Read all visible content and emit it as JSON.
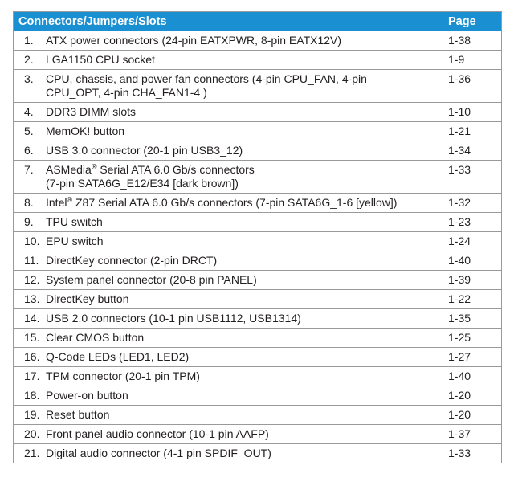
{
  "table": {
    "header": {
      "title": "Connectors/Jumpers/Slots",
      "page": "Page"
    },
    "rows": [
      {
        "num": "1.",
        "lines": [
          "ATX power connectors (24-pin EATXPWR, 8-pin EATX12V)"
        ],
        "page": "1-38"
      },
      {
        "num": "2.",
        "lines": [
          "LGA1150 CPU socket"
        ],
        "page": "1-9"
      },
      {
        "num": "3.",
        "lines": [
          "CPU, chassis, and power fan connectors (4-pin CPU_FAN, 4-pin",
          "CPU_OPT, 4-pin CHA_FAN1-4 )"
        ],
        "page": "1-36"
      },
      {
        "num": "4.",
        "lines": [
          "DDR3 DIMM slots"
        ],
        "page": "1-10"
      },
      {
        "num": "5.",
        "lines": [
          "MemOK! button"
        ],
        "page": "1-21"
      },
      {
        "num": "6.",
        "lines": [
          "USB 3.0 connector (20-1 pin USB3_12)"
        ],
        "page": "1-34"
      },
      {
        "num": "7.",
        "lead": "ASMedia",
        "sup": "®",
        "lines": [
          " Serial ATA 6.0 Gb/s connectors",
          "(7-pin SATA6G_E12/E34 [dark brown])"
        ],
        "page": "1-33"
      },
      {
        "num": "8.",
        "lead": "Intel",
        "sup": "®",
        "lines": [
          " Z87 Serial ATA 6.0 Gb/s connectors (7-pin SATA6G_1-6 [yellow])"
        ],
        "page": "1-32"
      },
      {
        "num": "9.",
        "lines": [
          "TPU switch"
        ],
        "page": "1-23"
      },
      {
        "num": "10.",
        "lines": [
          "EPU switch"
        ],
        "page": "1-24"
      },
      {
        "num": "11.",
        "lines": [
          "DirectKey connector (2-pin DRCT)"
        ],
        "page": "1-40"
      },
      {
        "num": "12.",
        "lines": [
          "System panel connector (20-8 pin PANEL)"
        ],
        "page": "1-39"
      },
      {
        "num": "13.",
        "lines": [
          "DirectKey button"
        ],
        "page": "1-22"
      },
      {
        "num": "14.",
        "lines": [
          "USB 2.0 connectors (10-1 pin USB1112, USB1314)"
        ],
        "page": "1-35"
      },
      {
        "num": "15.",
        "lines": [
          "Clear CMOS button"
        ],
        "page": "1-25"
      },
      {
        "num": "16.",
        "lines": [
          "Q-Code LEDs (LED1, LED2)"
        ],
        "page": "1-27"
      },
      {
        "num": "17.",
        "lines": [
          "TPM connector (20-1 pin TPM)"
        ],
        "page": "1-40"
      },
      {
        "num": "18.",
        "lines": [
          "Power-on button"
        ],
        "page": "1-20"
      },
      {
        "num": "19.",
        "lines": [
          "Reset button"
        ],
        "page": "1-20"
      },
      {
        "num": "20.",
        "lines": [
          "Front panel audio connector (10-1 pin AAFP)"
        ],
        "page": "1-37"
      },
      {
        "num": "21.",
        "lines": [
          "Digital audio connector (4-1 pin SPDIF_OUT)"
        ],
        "page": "1-33"
      }
    ]
  },
  "colors": {
    "header_bg": "#1a90d2",
    "header_text": "#ffffff",
    "border": "#9a9a9a",
    "text": "#231f20"
  }
}
